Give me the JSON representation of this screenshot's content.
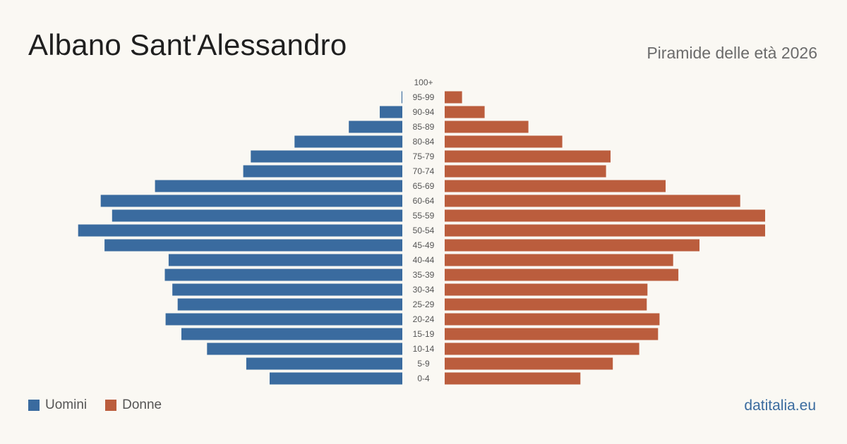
{
  "header": {
    "title": "Albano Sant'Alessandro",
    "subtitle": "Piramide delle età 2026"
  },
  "footer": {
    "brand": "datitalia.eu"
  },
  "colors": {
    "men": "#3a6b9f",
    "women": "#bb5d3d",
    "label": "#555555"
  },
  "chart_data": {
    "type": "bar",
    "orientation": "horizontal-pyramid",
    "categories": [
      "100+",
      "95-99",
      "90-94",
      "85-89",
      "80-84",
      "75-79",
      "70-74",
      "65-69",
      "60-64",
      "55-59",
      "50-54",
      "45-49",
      "40-44",
      "35-39",
      "30-34",
      "25-29",
      "20-24",
      "15-19",
      "10-14",
      "5-9",
      "0-4"
    ],
    "series": [
      {
        "name": "Uomini",
        "values": [
          0,
          1,
          30,
          71,
          143,
          201,
          211,
          328,
          400,
          385,
          430,
          395,
          310,
          315,
          305,
          298,
          314,
          293,
          259,
          207,
          176
        ]
      },
      {
        "name": "Donne",
        "values": [
          0,
          23,
          53,
          111,
          156,
          220,
          214,
          293,
          392,
          425,
          425,
          338,
          303,
          310,
          269,
          268,
          285,
          283,
          258,
          223,
          180
        ]
      }
    ],
    "xlim": [
      0,
      440
    ],
    "grid": false,
    "legend": "bottom-left"
  }
}
